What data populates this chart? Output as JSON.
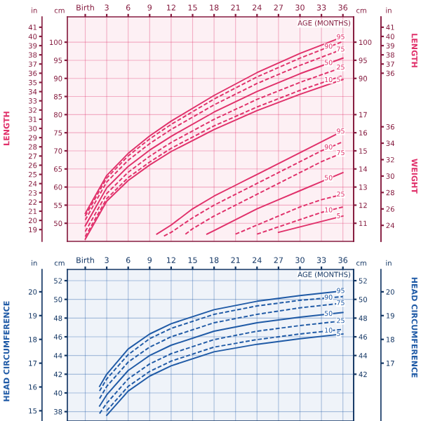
{
  "chart_data": [
    {
      "type": "line",
      "xlabel": "AGE (MONTHS)",
      "ylabel": "LENGTH",
      "annotations": [
        "cm",
        "in",
        "cm"
      ],
      "legend": "right",
      "x": [
        0,
        3,
        6,
        9,
        12,
        18,
        24,
        30,
        36
      ],
      "xlim": [
        -2.5,
        37.5
      ],
      "xticks": [
        {
          "value": 0,
          "label": "Birth"
        },
        3,
        6,
        9,
        12,
        15,
        18,
        21,
        24,
        27,
        30,
        33,
        36
      ],
      "ylim": [
        45,
        107
      ],
      "yticks": [
        50,
        55,
        60,
        65,
        70,
        75,
        80,
        85,
        90,
        95,
        100
      ],
      "y2lim": [
        45,
        107
      ],
      "y2ticks": [
        90,
        95,
        100
      ],
      "y3lim": [
        17.72,
        42.13
      ],
      "y3ticks": [
        19,
        20,
        21,
        22,
        23,
        24,
        25,
        26,
        27,
        28,
        29,
        30,
        31,
        32,
        33,
        34,
        35,
        36,
        37,
        38,
        39,
        40,
        41
      ],
      "grid": true,
      "marker": "none",
      "series": [
        {
          "name": "5",
          "color": "#e0306a",
          "line_style": "solid",
          "values": [
            45.6,
            56.1,
            61.8,
            66.1,
            69.8,
            75.9,
            81.1,
            85.6,
            89.7
          ]
        },
        {
          "name": "10",
          "color": "#e0306a",
          "line_style": "dashed",
          "values": [
            46.3,
            56.8,
            62.6,
            66.9,
            70.7,
            76.9,
            82.1,
            86.7,
            90.8
          ]
        },
        {
          "name": "25",
          "color": "#e0306a",
          "line_style": "dashed",
          "values": [
            47.7,
            58.2,
            64.1,
            68.5,
            72.3,
            78.7,
            84.2,
            88.9,
            93.1
          ]
        },
        {
          "name": "50",
          "color": "#e0306a",
          "line_style": "solid",
          "values": [
            49.3,
            59.8,
            65.7,
            70.2,
            74.0,
            80.7,
            86.4,
            91.3,
            95.6
          ]
        },
        {
          "name": "75",
          "color": "#e0306a",
          "line_style": "dashed",
          "values": [
            50.9,
            61.4,
            67.4,
            72.0,
            75.9,
            82.7,
            88.6,
            93.6,
            98.1
          ]
        },
        {
          "name": "90",
          "color": "#e0306a",
          "line_style": "dashed",
          "values": [
            52.0,
            62.5,
            68.6,
            73.3,
            77.3,
            84.3,
            90.4,
            95.6,
            100.2
          ]
        },
        {
          "name": "95",
          "color": "#e0306a",
          "line_style": "solid",
          "values": [
            52.7,
            63.2,
            69.3,
            74.1,
            78.2,
            85.3,
            91.6,
            96.9,
            101.5
          ]
        }
      ]
    },
    {
      "type": "line",
      "y2label": "WEIGHT",
      "y3label": "LENGTH",
      "annotations": [
        "in"
      ],
      "legend": "right",
      "tick_labels": "y",
      "xlim": [
        -2.5,
        37.5
      ],
      "ylim": [
        10,
        22.4
      ],
      "yticks": [
        11,
        12,
        13,
        14,
        15,
        16,
        17
      ],
      "y2lim": [
        22.05,
        49.38
      ],
      "y2ticks": [
        24,
        26,
        28,
        30,
        32,
        34,
        36
      ],
      "y3lim": [
        17.72,
        42.13
      ],
      "y3ticks": [
        36,
        37,
        38,
        39,
        40,
        41
      ],
      "marker": "none",
      "series": [
        {
          "name": "95",
          "color": "#e0306a",
          "line_style": "solid",
          "x": [
            10,
            12,
            15,
            18,
            21,
            24,
            27,
            30,
            33,
            36
          ],
          "values": [
            10.4,
            10.9,
            11.8,
            12.5,
            13.1,
            13.7,
            14.3,
            14.9,
            15.5,
            16.1
          ]
        },
        {
          "name": "90",
          "color": "#e0306a",
          "line_style": "dashed",
          "x": [
            11,
            12,
            15,
            18,
            21,
            24,
            27,
            30,
            33,
            36
          ],
          "values": [
            10.3,
            10.5,
            11.3,
            12.0,
            12.6,
            13.2,
            13.8,
            14.4,
            15.0,
            15.5
          ]
        },
        {
          "name": "75",
          "color": "#e0306a",
          "line_style": "dashed",
          "x": [
            14,
            15,
            18,
            21,
            24,
            27,
            30,
            33,
            36
          ],
          "values": [
            10.4,
            10.7,
            11.4,
            12.0,
            12.6,
            13.2,
            13.8,
            14.4,
            14.9
          ]
        },
        {
          "name": "50",
          "color": "#e0306a",
          "line_style": "solid",
          "x": [
            17,
            18,
            21,
            24,
            27,
            30,
            33,
            36
          ],
          "values": [
            10.4,
            10.6,
            11.2,
            11.8,
            12.3,
            12.8,
            13.3,
            13.8
          ]
        },
        {
          "name": "25",
          "color": "#e0306a",
          "line_style": "dashed",
          "x": [
            21,
            24,
            27,
            30,
            33,
            36
          ],
          "values": [
            10.4,
            10.9,
            11.4,
            11.9,
            12.3,
            12.6
          ]
        },
        {
          "name": "10",
          "color": "#e0306a",
          "line_style": "dashed",
          "x": [
            24,
            27,
            30,
            33,
            36
          ],
          "values": [
            10.4,
            10.8,
            11.2,
            11.6,
            11.9
          ]
        },
        {
          "name": "5",
          "color": "#e0306a",
          "line_style": "solid",
          "x": [
            27,
            30,
            33,
            36
          ],
          "values": [
            10.5,
            10.8,
            11.1,
            11.4
          ]
        }
      ]
    },
    {
      "type": "line",
      "xlabel": "AGE (MONTHS)",
      "ylabel": "HEAD CIRCUMFERENCE",
      "y2label": "HEAD CIRCUMFERENCE",
      "annotations": [
        "cm",
        "in",
        "cm"
      ],
      "legend": "right",
      "x": [
        2,
        3,
        6,
        9,
        12,
        18,
        24,
        30,
        36
      ],
      "xlim": [
        -2.5,
        37.5
      ],
      "xticks": [
        {
          "value": 0,
          "label": "Birth"
        },
        3,
        6,
        9,
        12,
        15,
        18,
        21,
        24,
        27,
        30,
        33,
        36
      ],
      "ylim": [
        37,
        53.2
      ],
      "yticks": [
        38,
        40,
        42,
        44,
        46,
        48,
        50,
        52
      ],
      "y2lim": [
        37,
        53.2
      ],
      "y2ticks": [
        42,
        44,
        46,
        48,
        50,
        52
      ],
      "y3lim": [
        14.57,
        20.94
      ],
      "y3ticks": [
        15,
        16,
        17,
        18,
        19,
        20
      ],
      "grid": true,
      "marker": "none",
      "series": [
        {
          "name": "5",
          "color": "#1f5aa6",
          "line_style": "solid",
          "values": [
            null,
            37.6,
            40.2,
            41.8,
            42.9,
            44.4,
            45.2,
            45.8,
            46.3
          ]
        },
        {
          "name": "10",
          "color": "#1f5aa6",
          "line_style": "dashed",
          "values": [
            null,
            38.1,
            40.7,
            42.3,
            43.4,
            44.9,
            45.7,
            46.3,
            46.8
          ]
        },
        {
          "name": "25",
          "color": "#1f5aa6",
          "line_style": "dashed",
          "values": [
            37.8,
            38.9,
            41.5,
            43.1,
            44.2,
            45.7,
            46.6,
            47.2,
            47.7
          ]
        },
        {
          "name": "50",
          "color": "#1f5aa6",
          "line_style": "solid",
          "values": [
            38.6,
            39.8,
            42.4,
            44.0,
            45.1,
            46.6,
            47.5,
            48.1,
            48.6
          ]
        },
        {
          "name": "75",
          "color": "#1f5aa6",
          "line_style": "dashed",
          "values": [
            39.4,
            40.7,
            43.3,
            44.9,
            46.0,
            47.5,
            48.4,
            49.1,
            49.6
          ]
        },
        {
          "name": "90",
          "color": "#1f5aa6",
          "line_style": "dashed",
          "values": [
            40.2,
            41.5,
            44.1,
            45.8,
            46.9,
            48.4,
            49.3,
            49.9,
            50.3
          ]
        },
        {
          "name": "95",
          "color": "#1f5aa6",
          "line_style": "solid",
          "values": [
            40.7,
            42.0,
            44.7,
            46.3,
            47.4,
            48.9,
            49.8,
            50.4,
            50.9
          ]
        }
      ]
    },
    {
      "type": "line",
      "tick_labels": "y",
      "annotations": [
        "in"
      ],
      "xlim": [
        -2.5,
        37.5
      ],
      "y2lim": [
        14.57,
        20.94
      ],
      "y2ticks": [
        17,
        18,
        19,
        20
      ]
    }
  ]
}
